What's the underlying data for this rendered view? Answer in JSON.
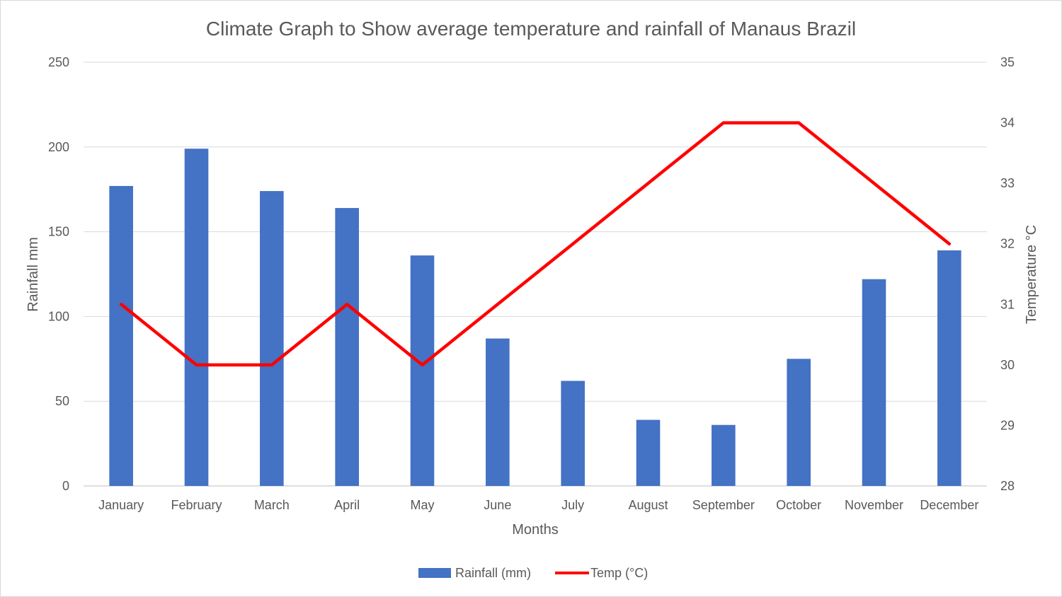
{
  "chart_data": {
    "type": "bar+line",
    "title": "Climate Graph to Show average temperature and rainfall of Manaus Brazil",
    "xlabel": "Months",
    "ylabel": "Rainfall mm",
    "y2label": "Temperature °C",
    "categories": [
      "January",
      "February",
      "March",
      "April",
      "May",
      "June",
      "July",
      "August",
      "September",
      "October",
      "November",
      "December"
    ],
    "ylim": [
      0,
      250
    ],
    "yticks": [
      0,
      50,
      100,
      150,
      200,
      250
    ],
    "y2lim": [
      28,
      35
    ],
    "y2ticks": [
      28,
      29,
      30,
      31,
      32,
      33,
      34,
      35
    ],
    "grid": true,
    "legend_position": "bottom",
    "series": [
      {
        "name": "Rainfall (mm)",
        "type": "bar",
        "axis": "left",
        "color": "#4472C4",
        "values": [
          177,
          199,
          174,
          164,
          136,
          87,
          62,
          39,
          36,
          75,
          122,
          139
        ]
      },
      {
        "name": "Temp (°C)",
        "type": "line",
        "axis": "right",
        "color": "#FF0000",
        "values": [
          31,
          30,
          30,
          31,
          30,
          31,
          32,
          33,
          34,
          34,
          33,
          32
        ]
      }
    ]
  }
}
